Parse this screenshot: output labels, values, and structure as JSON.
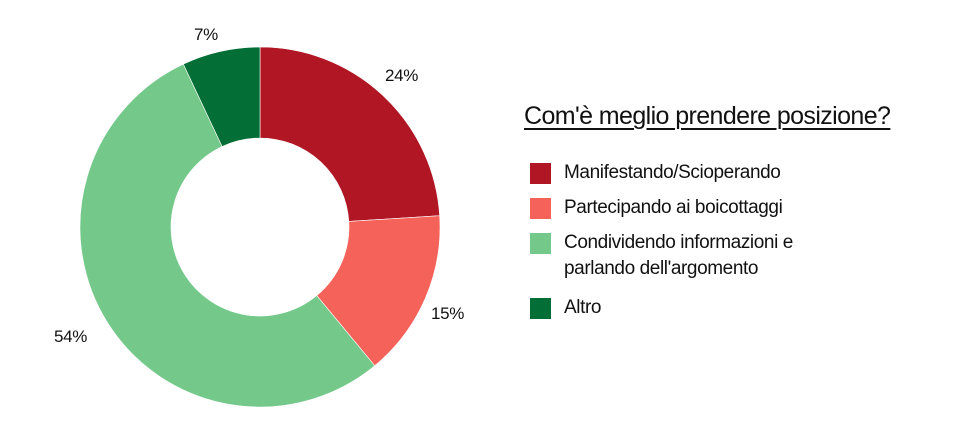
{
  "chart_data": {
    "type": "pie",
    "variant": "donut",
    "title": "Com'è meglio prendere posizione?",
    "categories": [
      "Manifestando/Scioperando",
      "Partecipando ai boicottaggi",
      "Condividendo informazioni e parlando dell'argomento",
      "Altro"
    ],
    "values": [
      24,
      15,
      54,
      7
    ],
    "labels": [
      "24%",
      "15%",
      "54%",
      "7%"
    ],
    "colors": [
      "#B01623",
      "#F5625A",
      "#74C98A",
      "#046E37"
    ],
    "legend_position": "right",
    "start_angle": "12 o'clock, clockwise"
  },
  "title": "Com'è meglio prendere posizione?",
  "legend": [
    {
      "lines": [
        "Manifestando/Scioperando"
      ],
      "color": "#B01623"
    },
    {
      "lines": [
        "Partecipando ai boicottaggi"
      ],
      "color": "#F5625A"
    },
    {
      "lines": [
        "Condividendo informazioni e",
        "parlando dell'argomento"
      ],
      "color": "#74C98A"
    },
    {
      "lines": [
        "Altro"
      ],
      "color": "#046E37"
    }
  ],
  "slice_labels": {
    "manifestando": "24%",
    "boicottaggi": "15%",
    "condividendo": "54%",
    "altro": "7%"
  }
}
